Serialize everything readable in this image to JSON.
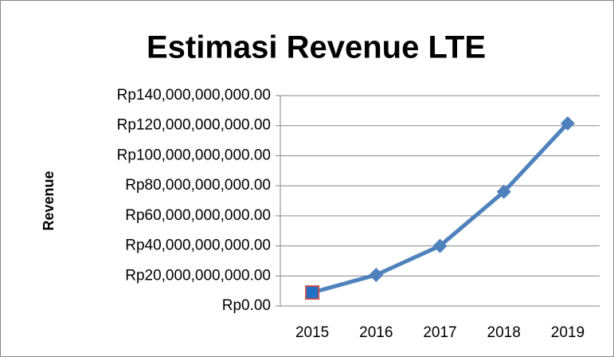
{
  "chart_data": {
    "type": "line",
    "title": "Estimasi Revenue LTE",
    "y_label": "Revenue",
    "categories": [
      "2015",
      "2016",
      "2017",
      "2018",
      "2019"
    ],
    "series": [
      {
        "name": "Revenue",
        "color": "#4f81bd",
        "values": [
          9000000000,
          20700000000,
          40000000000,
          76000000000,
          121500000000
        ]
      }
    ],
    "ylim": [
      0,
      140000000000
    ],
    "yticks": [
      {
        "value": 0,
        "label": "Rp0.00"
      },
      {
        "value": 20000000000,
        "label": "Rp20,000,000,000.00"
      },
      {
        "value": 40000000000,
        "label": "Rp40,000,000,000.00"
      },
      {
        "value": 60000000000,
        "label": "Rp60,000,000,000.00"
      },
      {
        "value": 80000000000,
        "label": "Rp80,000,000,000.00"
      },
      {
        "value": 100000000000,
        "label": "Rp100,000,000,000.00"
      },
      {
        "value": 120000000000,
        "label": "Rp120,000,000,000.00"
      },
      {
        "value": 140000000000,
        "label": "Rp140,000,000,000.00"
      }
    ],
    "grid": true
  }
}
